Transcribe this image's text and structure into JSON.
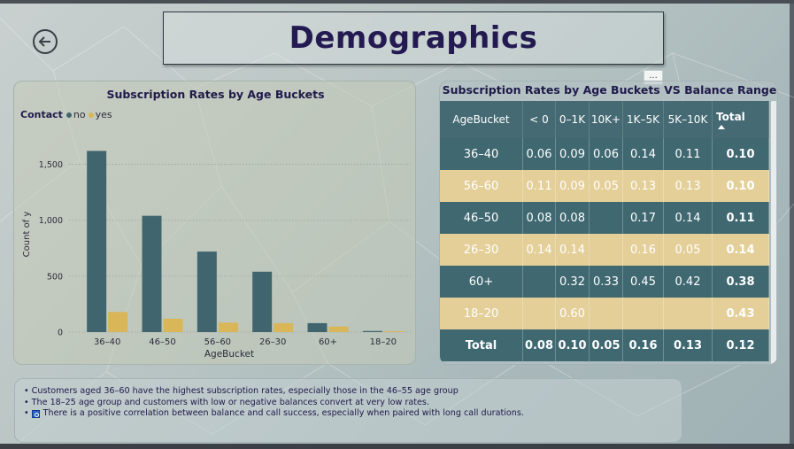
{
  "page": {
    "title": "Demographics",
    "more_label": "..."
  },
  "colors": {
    "no": "#41656e",
    "yes": "#d9b657",
    "title": "#241a52"
  },
  "chart_data": [
    {
      "type": "bar",
      "title": "Subscription Rates by Age Buckets",
      "legend_title": "Contact",
      "legend_position": "top-left",
      "categories": [
        "36–40",
        "46–50",
        "56–60",
        "26–30",
        "60+",
        "18–20"
      ],
      "series": [
        {
          "name": "no",
          "values": [
            1620,
            1040,
            720,
            540,
            80,
            10
          ]
        },
        {
          "name": "yes",
          "values": [
            180,
            120,
            85,
            80,
            50,
            8
          ]
        }
      ],
      "xlabel": "AgeBucket",
      "ylabel": "Count of y",
      "ylim": [
        0,
        1750
      ],
      "yticks": [
        0,
        500,
        1000,
        1500
      ],
      "ytick_labels": [
        "0",
        "500",
        "1,000",
        "1,500"
      ],
      "grid": true
    },
    {
      "type": "table",
      "title": "Subscription Rates by Age Buckets VS Balance Range",
      "columns": [
        "AgeBucket",
        "< 0",
        "0–1K",
        "10K+",
        "1K–5K",
        "5K–10K",
        "Total"
      ],
      "rows": [
        {
          "age": "36–40",
          "values": [
            "0.06",
            "0.09",
            "0.06",
            "0.14",
            "0.11",
            "0.10"
          ]
        },
        {
          "age": "56–60",
          "values": [
            "0.11",
            "0.09",
            "0.05",
            "0.13",
            "0.13",
            "0.10"
          ]
        },
        {
          "age": "46–50",
          "values": [
            "0.08",
            "0.08",
            "",
            "0.17",
            "0.14",
            "0.11"
          ]
        },
        {
          "age": "26–30",
          "values": [
            "0.14",
            "0.14",
            "",
            "0.16",
            "0.05",
            "0.14"
          ]
        },
        {
          "age": "60+",
          "values": [
            "",
            "0.32",
            "0.33",
            "0.45",
            "0.42",
            "0.38"
          ]
        },
        {
          "age": "18–20",
          "values": [
            "",
            "0.60",
            "",
            "",
            "",
            "0.43"
          ]
        }
      ],
      "total_row": {
        "label": "Total",
        "values": [
          "0.08",
          "0.10",
          "0.05",
          "0.16",
          "0.13",
          "0.12"
        ]
      }
    }
  ],
  "notes": [
    "Customers aged 36–60 have the highest subscription rates, especially those in the 46–55 age group",
    "The 18–25 age group and customers with low or negative balances convert at very low rates.",
    "There is a positive correlation between balance and call success, especially when paired with long call durations."
  ]
}
